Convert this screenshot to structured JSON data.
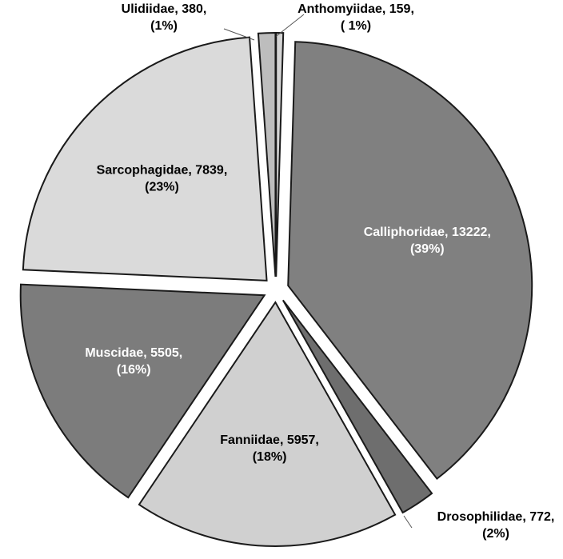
{
  "chart_data": {
    "type": "pie",
    "value_labels": [
      "Anthomyiidae, 159,",
      "Calliphoridae, 13222,",
      "Drosophilidae, 772,",
      "Fanniidae, 5957,",
      "Muscidae, 5505,",
      "Sarcophagidae, 7839,",
      "Ulidiidae, 380,"
    ],
    "percent_labels": [
      "( 1%)",
      "(39%)",
      "(2%)",
      "(18%)",
      "(16%)",
      "(23%)",
      "(1%)"
    ],
    "values": [
      159,
      13222,
      772,
      5957,
      5505,
      7839,
      380
    ],
    "colors": [
      "#d4d4d4",
      "#808080",
      "#6e6e6e",
      "#d0d0d0",
      "#7c7c7c",
      "#dadada",
      "#bdbdbd"
    ],
    "start_angle": 0,
    "direction": "clockwise",
    "exploded": true
  }
}
